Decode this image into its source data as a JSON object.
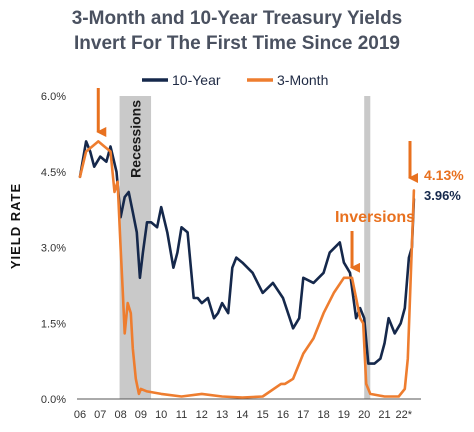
{
  "title_lines": [
    "3-Month and 10-Year Treasury Yields",
    "Invert For The First Time Since 2019"
  ],
  "colors": {
    "ten_year": "#15284b",
    "three_month": "#ee7d2f",
    "recession": "#c9c9c9",
    "title": "#4a5160",
    "arrow": "#e8711f"
  },
  "chart_data": {
    "type": "line",
    "title": "3-Month and 10-Year Treasury Yields Invert For The First Time Since 2019",
    "ylabel": "YIELD RATE",
    "xlabel": "",
    "ylim": [
      0,
      6
    ],
    "xlim": [
      2006,
      2022.5
    ],
    "y_ticks": [
      0,
      1.5,
      3.0,
      4.5,
      6.0
    ],
    "y_tick_labels": [
      "0.0%",
      "1.5%",
      "3.0%",
      "4.5%",
      "6.0%"
    ],
    "x_ticks": [
      2006,
      2007,
      2008,
      2009,
      2010,
      2011,
      2012,
      2013,
      2014,
      2015,
      2016,
      2017,
      2018,
      2019,
      2020,
      2021,
      2022
    ],
    "x_tick_labels": [
      "06",
      "07",
      "08",
      "09",
      "10",
      "11",
      "12",
      "13",
      "14",
      "15",
      "16",
      "17",
      "18",
      "19",
      "20",
      "21",
      "22*"
    ],
    "grid": false,
    "legend": "top",
    "series": [
      {
        "name": "10-Year",
        "x": [
          2006.0,
          2006.3,
          2006.5,
          2006.7,
          2007.0,
          2007.3,
          2007.5,
          2007.8,
          2008.0,
          2008.2,
          2008.4,
          2008.6,
          2008.8,
          2008.95,
          2009.1,
          2009.3,
          2009.5,
          2009.8,
          2010.0,
          2010.3,
          2010.6,
          2010.8,
          2011.0,
          2011.3,
          2011.6,
          2011.8,
          2012.0,
          2012.3,
          2012.6,
          2012.8,
          2013.0,
          2013.3,
          2013.5,
          2013.7,
          2014.0,
          2014.5,
          2015.0,
          2015.5,
          2016.0,
          2016.5,
          2016.8,
          2017.0,
          2017.5,
          2018.0,
          2018.3,
          2018.8,
          2019.0,
          2019.3,
          2019.6,
          2019.8,
          2020.0,
          2020.2,
          2020.5,
          2020.8,
          2021.0,
          2021.2,
          2021.5,
          2021.8,
          2022.0,
          2022.2,
          2022.35,
          2022.45
        ],
        "values": [
          4.4,
          5.1,
          4.9,
          4.6,
          4.8,
          4.7,
          5.0,
          4.5,
          3.6,
          4.0,
          4.1,
          3.7,
          3.3,
          2.4,
          2.9,
          3.5,
          3.5,
          3.4,
          3.8,
          3.3,
          2.6,
          2.9,
          3.4,
          3.3,
          2.0,
          2.0,
          1.9,
          2.0,
          1.6,
          1.7,
          1.9,
          1.7,
          2.6,
          2.8,
          2.7,
          2.5,
          2.1,
          2.3,
          2.0,
          1.4,
          1.6,
          2.4,
          2.3,
          2.5,
          2.9,
          3.1,
          2.7,
          2.5,
          1.6,
          1.8,
          1.6,
          0.7,
          0.7,
          0.8,
          1.1,
          1.6,
          1.3,
          1.5,
          1.8,
          2.8,
          3.0,
          3.96
        ]
      },
      {
        "name": "3-Month",
        "x": [
          2006.0,
          2006.3,
          2006.6,
          2006.9,
          2007.2,
          2007.5,
          2007.7,
          2007.85,
          2008.0,
          2008.1,
          2008.2,
          2008.35,
          2008.5,
          2008.6,
          2008.75,
          2008.9,
          2009.0,
          2009.3,
          2010.0,
          2011.0,
          2012.0,
          2013.0,
          2014.0,
          2015.0,
          2015.9,
          2016.1,
          2016.5,
          2017.0,
          2017.5,
          2018.0,
          2018.5,
          2019.0,
          2019.4,
          2019.6,
          2019.8,
          2019.95,
          2020.1,
          2020.3,
          2021.0,
          2021.7,
          2022.0,
          2022.15,
          2022.3,
          2022.45
        ],
        "values": [
          4.4,
          4.9,
          5.0,
          5.1,
          5.0,
          4.9,
          4.1,
          4.3,
          3.0,
          2.2,
          1.3,
          1.9,
          1.7,
          1.0,
          0.4,
          0.1,
          0.2,
          0.15,
          0.1,
          0.05,
          0.1,
          0.05,
          0.03,
          0.05,
          0.3,
          0.3,
          0.4,
          0.9,
          1.2,
          1.7,
          2.1,
          2.4,
          2.4,
          2.0,
          1.6,
          1.5,
          0.3,
          0.1,
          0.05,
          0.05,
          0.2,
          0.8,
          2.5,
          4.13
        ]
      }
    ],
    "shaded_regions": [
      {
        "label": "Recessions",
        "x_start": 2007.95,
        "x_end": 2009.5
      },
      {
        "label": "",
        "x_start": 2020.0,
        "x_end": 2020.3
      }
    ],
    "annotations": [
      {
        "text": "Inversions",
        "arrow_to": [
          2019.4,
          2.4
        ]
      },
      {
        "text": "",
        "arrow_to": [
          2006.9,
          5.05
        ]
      },
      {
        "text": "4.13%",
        "series": "3-Month"
      },
      {
        "text": "3.96%",
        "series": "10-Year"
      }
    ]
  }
}
